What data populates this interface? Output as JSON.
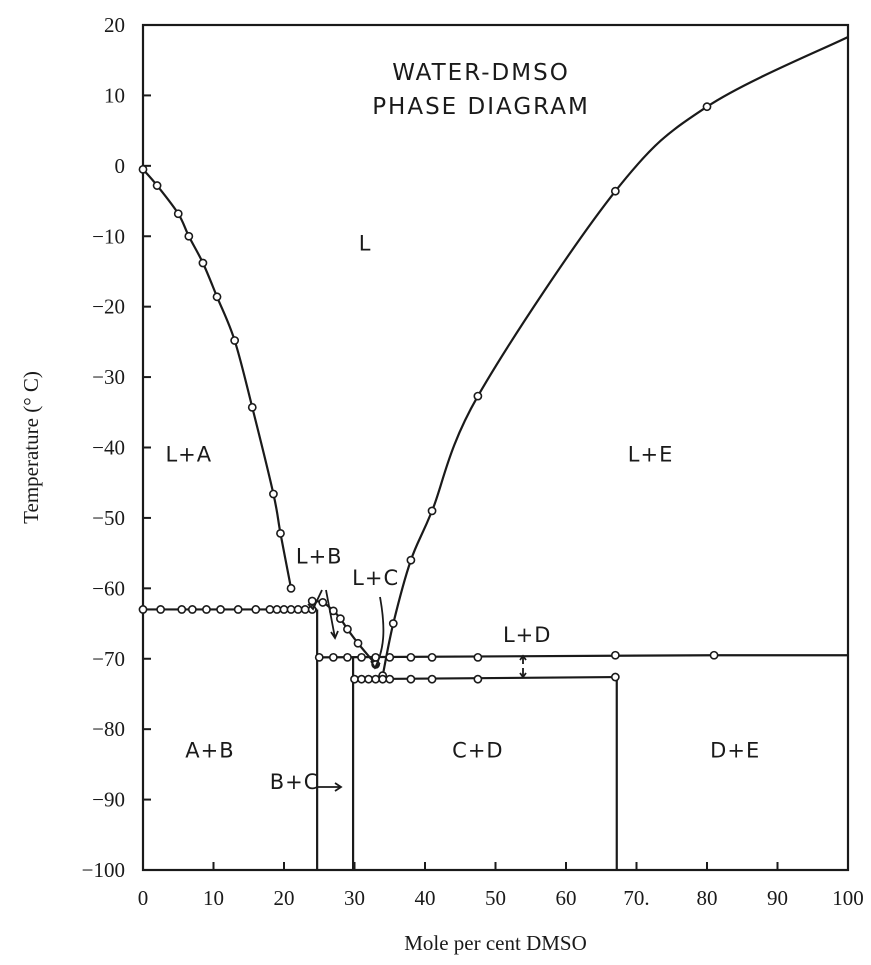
{
  "chart_data": {
    "type": "line",
    "title": "WATER-DMSO",
    "subtitle": "PHASE DIAGRAM",
    "xlabel": "Mole per cent DMSO",
    "ylabel": "Temperature (° C)",
    "xlim": [
      0,
      100
    ],
    "ylim": [
      -100,
      20
    ],
    "x_ticks": [
      0,
      10,
      20,
      30,
      40,
      50,
      60,
      70,
      80,
      90,
      100
    ],
    "x_tick_labels": [
      "0",
      "10",
      "20",
      "30",
      "40",
      "50",
      "60",
      "70.",
      "80",
      "90",
      "100"
    ],
    "y_ticks": [
      20,
      10,
      0,
      -10,
      -20,
      -30,
      -40,
      -50,
      -60,
      -70,
      -80,
      -90,
      -100
    ],
    "y_tick_labels": [
      "20",
      "10",
      "0",
      "−10",
      "−20",
      "−30",
      "−40",
      "−50",
      "−60",
      "−70",
      "−80",
      "−90",
      "−100"
    ],
    "grid": false,
    "legend": "none",
    "series": [
      {
        "id": "water-liquidus",
        "x": [
          0,
          2,
          5,
          6.5,
          8.5,
          10.5,
          13,
          15.5,
          18.5,
          19.5,
          21
        ],
        "y": [
          -0.5,
          -2.8,
          -6.8,
          -10,
          -13.8,
          -18.6,
          -24.8,
          -34.3,
          -46.6,
          -52.2,
          -60
        ]
      },
      {
        "id": "b-liquidus",
        "x": [
          24,
          25.5,
          27,
          28,
          29,
          30.5,
          33
        ],
        "y": [
          -61.8,
          -62,
          -63.2,
          -64.3,
          -65.8,
          -67.8,
          -70.8
        ]
      },
      {
        "id": "c-liquidus",
        "x": [
          33,
          34
        ],
        "y": [
          -72.6,
          -72.4
        ]
      },
      {
        "id": "dmso-liquidus",
        "x": [
          34,
          35.5,
          38,
          41,
          47.5,
          67,
          80,
          100
        ],
        "y": [
          -72.4,
          -65,
          -56,
          -49,
          -32.7,
          -3.6,
          8.4,
          18.3
        ]
      },
      {
        "id": "eutectic-a-b",
        "x": [
          0,
          2.5,
          5.5,
          7,
          9,
          11,
          13.5,
          16,
          18,
          19,
          20,
          21,
          22,
          23,
          24
        ],
        "y": [
          -63,
          -63,
          -63,
          -63,
          -63,
          -63,
          -63,
          -63,
          -63,
          -63,
          -63,
          -63,
          -63,
          -63,
          -63
        ]
      },
      {
        "id": "peritectic-b-c",
        "x": [
          25,
          27,
          29,
          31,
          33,
          35,
          38,
          41,
          47.5,
          67,
          81
        ],
        "y": [
          -69.8,
          -69.8,
          -69.8,
          -69.8,
          -69.8,
          -69.8,
          -69.8,
          -69.8,
          -69.8,
          -69.5,
          -69.5
        ]
      },
      {
        "id": "eutectic-c-d",
        "x": [
          30,
          31,
          32,
          33,
          34,
          35,
          38,
          41,
          47.5,
          67
        ],
        "y": [
          -72.9,
          -72.9,
          -72.9,
          -72.9,
          -72.9,
          -72.9,
          -72.9,
          -72.9,
          -72.9,
          -72.6
        ]
      }
    ],
    "phase_boundaries_x": [
      24.7,
      29.8,
      67.2
    ],
    "region_labels": [
      {
        "text": "L",
        "x": 31.5,
        "y": -12
      },
      {
        "text": "L+A",
        "x": 6.5,
        "y": -42
      },
      {
        "text": "L+E",
        "x": 72,
        "y": -42
      },
      {
        "text": "L+B",
        "x": 25,
        "y": -56.5
      },
      {
        "text": "L+C",
        "x": 33,
        "y": -59.5
      },
      {
        "text": "L+D",
        "x": 54.5,
        "y": -67.6
      },
      {
        "text": "A+B",
        "x": 9.5,
        "y": -84
      },
      {
        "text": "B+C",
        "x": 21.5,
        "y": -88.5
      },
      {
        "text": "C+D",
        "x": 47.5,
        "y": -84
      },
      {
        "text": "D+E",
        "x": 84,
        "y": -84
      }
    ]
  }
}
